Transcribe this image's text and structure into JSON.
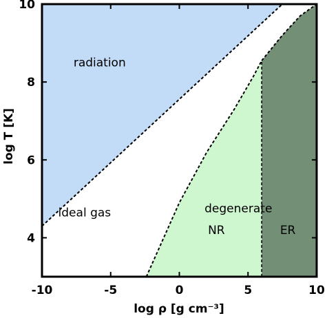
{
  "chart_data": {
    "type": "area",
    "xlabel": "log ρ [g cm⁻³]",
    "ylabel": "log T [K]",
    "xlim": [
      -10,
      10
    ],
    "ylim": [
      3,
      10
    ],
    "xticks": [
      -10,
      -5,
      0,
      5,
      10
    ],
    "yticks": [
      4,
      6,
      8,
      10
    ],
    "boundaries": {
      "radiation_ideal": {
        "x": [
          -10,
          7.5
        ],
        "y": [
          4.3,
          10.0
        ]
      },
      "nr_degenerate": {
        "x": [
          -2.4,
          0.0,
          2.0,
          4.0,
          5.4,
          6.0
        ],
        "y": [
          3.0,
          4.9,
          6.2,
          7.3,
          8.15,
          8.55
        ]
      },
      "er_degenerate": {
        "x": [
          6.0,
          7.5,
          8.8,
          10.0
        ],
        "y": [
          8.55,
          9.2,
          9.7,
          10.0
        ]
      },
      "nr_er_split": {
        "x": [
          6.0,
          6.0
        ],
        "y": [
          3.0,
          8.55
        ]
      }
    },
    "regions": [
      {
        "label": "radiation",
        "x": -5.8,
        "y": 8.4,
        "color": "#c2dcf7"
      },
      {
        "label": "ideal gas",
        "x": -6.9,
        "y": 4.55,
        "color": "#ffffff"
      },
      {
        "label": "degenerate",
        "x": 4.3,
        "y": 4.65,
        "color": "#cef7d0"
      },
      {
        "label": "NR",
        "x": 2.7,
        "y": 4.1,
        "color": "#cef7d0"
      },
      {
        "label": "ER",
        "x": 7.9,
        "y": 4.1,
        "color": "#738f76"
      }
    ]
  }
}
